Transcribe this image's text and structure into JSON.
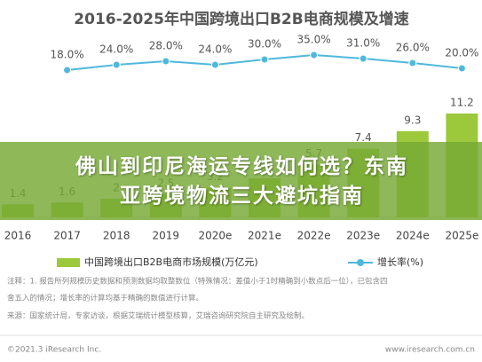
{
  "chart_data": {
    "type": "bar",
    "title": "2016-2025年中国跨境出口B2B电商规模及增速",
    "categories": [
      "2016",
      "2017",
      "2018",
      "2019",
      "2020e",
      "2021e",
      "2022e",
      "2023e",
      "2024e",
      "2025e"
    ],
    "series": [
      {
        "name": "中国跨境出口B2B电商市场规模(万亿元)",
        "type": "bar",
        "color": "#9cc83c",
        "values": [
          1.4,
          1.6,
          2.0,
          2.5,
          3.2,
          4.2,
          5.7,
          7.4,
          9.3,
          11.2
        ]
      },
      {
        "name": "增长率(%)",
        "type": "line",
        "axis": "y2",
        "color": "#4fb8dc",
        "values": [
          null,
          18.0,
          24.0,
          28.0,
          24.0,
          30.0,
          35.0,
          31.0,
          26.0,
          20.0
        ],
        "value_labels": [
          null,
          "18.0%",
          "24.0%",
          "28.0%",
          "24.0%",
          "30.0%",
          "35.0%",
          "31.0%",
          "26.0%",
          "20.0%"
        ]
      }
    ],
    "ylim": [
      0,
      22
    ],
    "y2lim": [
      -148,
      82
    ],
    "legend": "bottom",
    "annotations": [
      "注释：1. 报告所列规模历史数据和预测数据均取整数位（特殊情况：差值小于1时精确到小数点后一位），已包含四",
      "舍五入的情况；增长率的计算均基于精确的数值进行计算。",
      "来源：国家统计局，专家访谈，根据艾瑞统计模型核算，艾瑞咨询研究院自主研究及绘制。"
    ],
    "footer_left": "©2021.3 iResearch Inc.",
    "footer_right": "www.iresearch.com.cn"
  },
  "banner": {
    "title": "佛山到印尼海运专线如何选？东南亚跨境物流三大避坑指南"
  }
}
